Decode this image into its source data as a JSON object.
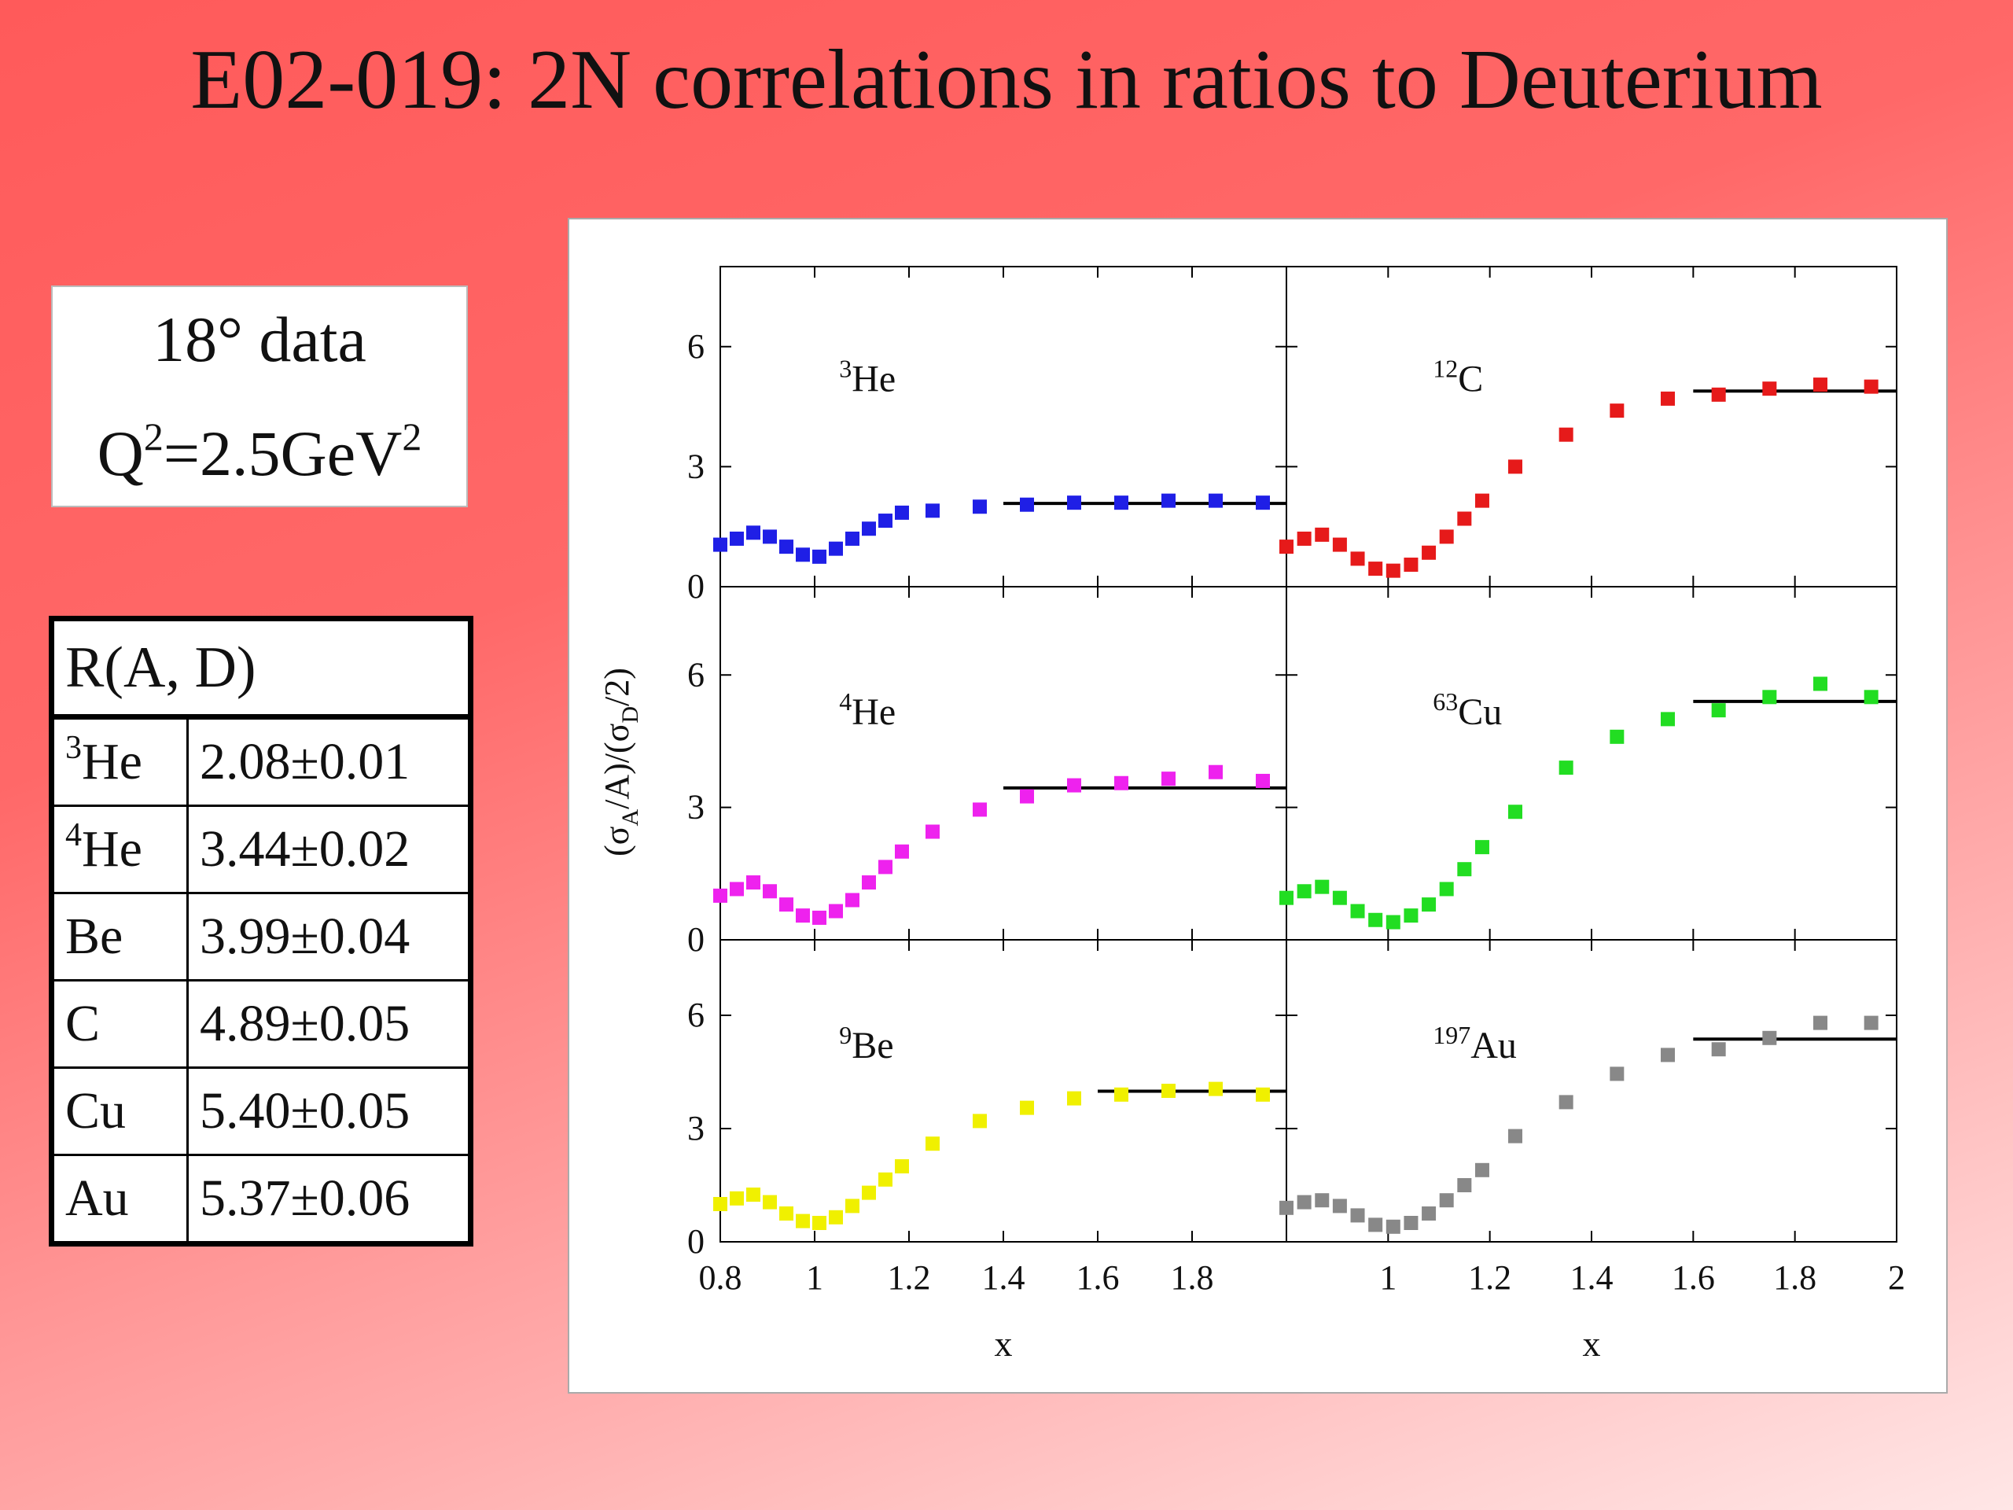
{
  "title": "E02-019: 2N correlations in ratios to Deuterium",
  "info_box": {
    "line1": "18° data",
    "q_label": "Q",
    "q_exp": "2",
    "q_value": "=2.5GeV",
    "q_unit_exp": "2"
  },
  "table": {
    "header": "R(A, D)",
    "rows": [
      {
        "sup": "3",
        "nucleus": "He",
        "value": "2.08±0.01"
      },
      {
        "sup": "4",
        "nucleus": "He",
        "value": "3.44±0.02"
      },
      {
        "sup": "",
        "nucleus": "Be",
        "value": "3.99±0.04"
      },
      {
        "sup": "",
        "nucleus": "C",
        "value": "4.89±0.05"
      },
      {
        "sup": "",
        "nucleus": "Cu",
        "value": "5.40±0.05"
      },
      {
        "sup": "",
        "nucleus": "Au",
        "value": "5.37±0.06"
      }
    ]
  },
  "chart_data": {
    "type": "scatter",
    "xlabel": "x",
    "ylabel": "(σ_A/A)/(σ_D/2)",
    "xlim": [
      0.8,
      2.0
    ],
    "ylim": [
      0,
      8
    ],
    "yticks": [
      0,
      3,
      6
    ],
    "xticks_left": [
      "0.8",
      "1",
      "1.2",
      "1.4",
      "1.6",
      "1.8"
    ],
    "xticks_right": [
      "1",
      "1.2",
      "1.4",
      "1.6",
      "1.8",
      "2"
    ],
    "x": [
      0.8,
      0.835,
      0.87,
      0.905,
      0.94,
      0.975,
      1.01,
      1.045,
      1.08,
      1.115,
      1.15,
      1.185,
      1.25,
      1.35,
      1.45,
      1.55,
      1.65,
      1.75,
      1.85,
      1.95
    ],
    "panels": [
      {
        "id": "he3",
        "label_sup": "3",
        "label": "He",
        "color": "#1f1fe6",
        "plateau": 2.08,
        "plateau_x": [
          1.4,
          2.0
        ],
        "y": [
          1.05,
          1.2,
          1.35,
          1.25,
          1.0,
          0.8,
          0.75,
          0.95,
          1.2,
          1.45,
          1.65,
          1.85,
          1.9,
          2.0,
          2.05,
          2.1,
          2.1,
          2.15,
          2.15,
          2.1
        ]
      },
      {
        "id": "c12",
        "label_sup": "12",
        "label": "C",
        "color": "#e61a1a",
        "plateau": 4.89,
        "plateau_x": [
          1.6,
          2.0
        ],
        "y": [
          1.0,
          1.2,
          1.3,
          1.05,
          0.7,
          0.45,
          0.4,
          0.55,
          0.85,
          1.25,
          1.7,
          2.15,
          3.0,
          3.8,
          4.4,
          4.7,
          4.8,
          4.95,
          5.05,
          5.0
        ]
      },
      {
        "id": "he4",
        "label_sup": "4",
        "label": "He",
        "color": "#ee22ee",
        "plateau": 3.44,
        "plateau_x": [
          1.4,
          2.0
        ],
        "y": [
          1.0,
          1.15,
          1.3,
          1.1,
          0.8,
          0.55,
          0.5,
          0.65,
          0.9,
          1.3,
          1.65,
          2.0,
          2.45,
          2.95,
          3.25,
          3.5,
          3.55,
          3.65,
          3.8,
          3.6
        ]
      },
      {
        "id": "cu63",
        "label_sup": "63",
        "label": "Cu",
        "color": "#22dd22",
        "plateau": 5.4,
        "plateau_x": [
          1.6,
          2.0
        ],
        "y": [
          0.95,
          1.1,
          1.2,
          0.95,
          0.65,
          0.45,
          0.4,
          0.55,
          0.8,
          1.15,
          1.6,
          2.1,
          2.9,
          3.9,
          4.6,
          5.0,
          5.2,
          5.5,
          5.8,
          5.5
        ]
      },
      {
        "id": "be9",
        "label_sup": "9",
        "label": "Be",
        "color": "#f0f000",
        "plateau": 3.99,
        "plateau_x": [
          1.6,
          2.0
        ],
        "y": [
          1.0,
          1.15,
          1.25,
          1.05,
          0.75,
          0.55,
          0.5,
          0.65,
          0.95,
          1.3,
          1.65,
          2.0,
          2.6,
          3.2,
          3.55,
          3.8,
          3.9,
          4.0,
          4.05,
          3.9
        ]
      },
      {
        "id": "au197",
        "label_sup": "197",
        "label": "Au",
        "color": "#888888",
        "plateau": 5.37,
        "plateau_x": [
          1.6,
          2.0
        ],
        "y": [
          0.9,
          1.05,
          1.1,
          0.95,
          0.7,
          0.45,
          0.4,
          0.5,
          0.75,
          1.1,
          1.5,
          1.9,
          2.8,
          3.7,
          4.45,
          4.95,
          5.1,
          5.4,
          5.8,
          5.8
        ]
      }
    ]
  }
}
